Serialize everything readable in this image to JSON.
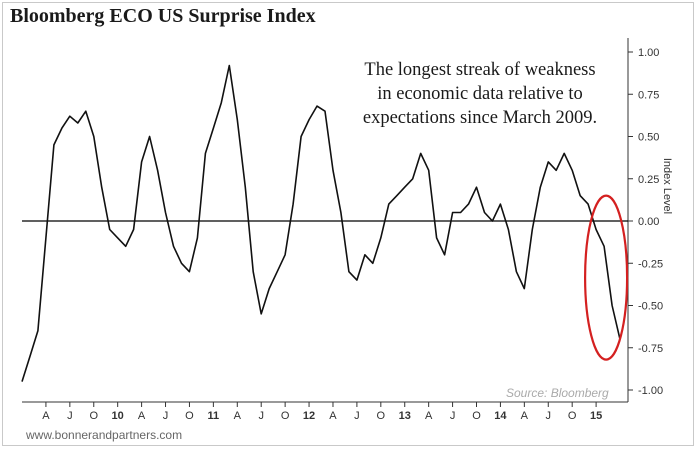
{
  "chart_data": {
    "type": "line",
    "title": "Bloomberg ECO US Surprise Index",
    "annotation": "The longest streak of weakness\nin economic data relative to\nexpectations since March 2009.",
    "ylabel": "Index Level",
    "source": "Source: Bloomberg",
    "ylim": [
      -1.05,
      1.05
    ],
    "y_ticks": [
      "1.00",
      "0.75",
      "0.50",
      "0.25",
      "0.00",
      "-0.25",
      "-0.50",
      "-0.75",
      "-1.00"
    ],
    "x_range": [
      "2009-01",
      "2015-05"
    ],
    "x_ticks": [
      "A",
      "J",
      "O",
      "10",
      "A",
      "J",
      "O",
      "11",
      "A",
      "J",
      "O",
      "12",
      "A",
      "J",
      "O",
      "13",
      "A",
      "J",
      "O",
      "14",
      "A",
      "J",
      "O",
      "15"
    ],
    "grid": false,
    "zero_line": true,
    "highlight": {
      "shape": "ellipse",
      "color": "#d42020",
      "around": "2015 decline"
    },
    "series": [
      {
        "x": [
          "2009-01",
          "2009-02",
          "2009-03",
          "2009-04",
          "2009-05",
          "2009-06",
          "2009-07",
          "2009-08",
          "2009-09",
          "2009-10",
          "2009-11",
          "2009-12",
          "2010-01",
          "2010-02",
          "2010-03",
          "2010-04",
          "2010-05",
          "2010-06",
          "2010-07",
          "2010-08",
          "2010-09",
          "2010-10",
          "2010-11",
          "2010-12",
          "2011-01",
          "2011-02",
          "2011-03",
          "2011-04",
          "2011-05",
          "2011-06",
          "2011-07",
          "2011-08",
          "2011-09",
          "2011-10",
          "2011-11",
          "2011-12",
          "2012-01",
          "2012-02",
          "2012-03",
          "2012-04",
          "2012-05",
          "2012-06",
          "2012-07",
          "2012-08",
          "2012-09",
          "2012-10",
          "2012-11",
          "2012-12",
          "2013-01",
          "2013-02",
          "2013-03",
          "2013-04",
          "2013-05",
          "2013-06",
          "2013-07",
          "2013-08",
          "2013-09",
          "2013-10",
          "2013-11",
          "2013-12",
          "2014-01",
          "2014-02",
          "2014-03",
          "2014-04",
          "2014-05",
          "2014-06",
          "2014-07",
          "2014-08",
          "2014-09",
          "2014-10",
          "2014-11",
          "2014-12",
          "2015-01",
          "2015-02",
          "2015-03",
          "2015-04"
        ],
        "values": [
          -0.95,
          -0.8,
          -0.65,
          -0.1,
          0.45,
          0.55,
          0.62,
          0.58,
          0.65,
          0.5,
          0.2,
          -0.05,
          -0.1,
          -0.15,
          -0.05,
          0.35,
          0.5,
          0.3,
          0.05,
          -0.15,
          -0.25,
          -0.3,
          -0.1,
          0.4,
          0.55,
          0.7,
          0.92,
          0.6,
          0.2,
          -0.3,
          -0.55,
          -0.4,
          -0.3,
          -0.2,
          0.1,
          0.5,
          0.6,
          0.68,
          0.65,
          0.3,
          0.05,
          -0.3,
          -0.35,
          -0.2,
          -0.25,
          -0.1,
          0.1,
          0.15,
          0.2,
          0.25,
          0.4,
          0.3,
          -0.1,
          -0.2,
          0.05,
          0.05,
          0.1,
          0.2,
          0.05,
          0.0,
          0.1,
          -0.05,
          -0.3,
          -0.4,
          -0.05,
          0.2,
          0.35,
          0.3,
          0.4,
          0.3,
          0.15,
          0.1,
          -0.05,
          -0.15,
          -0.5,
          -0.7
        ]
      }
    ]
  },
  "footer": {
    "website": "www.bonnerandpartners.com"
  }
}
